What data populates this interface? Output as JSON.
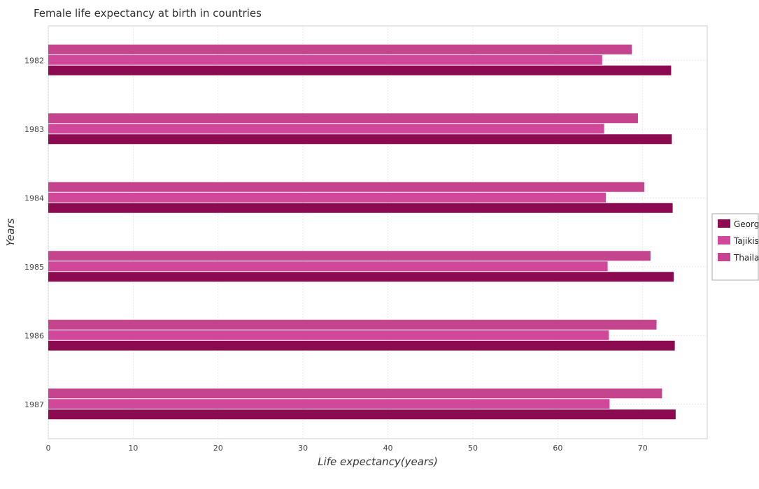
{
  "chart_data": {
    "type": "bar",
    "orientation": "horizontal",
    "title": "Female life expectancy at birth in countries",
    "xlabel": "Life expectancy(years)",
    "ylabel": "Years",
    "categories": [
      "1982",
      "1983",
      "1984",
      "1985",
      "1986",
      "1987"
    ],
    "series": [
      {
        "name": "Georgia",
        "color": "#8B0A50",
        "values": [
          73.35,
          73.43,
          73.53,
          73.65,
          73.78,
          73.88
        ]
      },
      {
        "name": "Tajikistan",
        "color": "#D1479A",
        "values": [
          65.23,
          65.46,
          65.67,
          65.87,
          66.02,
          66.1
        ]
      },
      {
        "name": "Thailand",
        "color": "#C4458E",
        "values": [
          68.72,
          69.44,
          70.19,
          70.92,
          71.63,
          72.28
        ]
      }
    ],
    "xlim": [
      0,
      77.6
    ],
    "xticks": [
      0,
      10,
      20,
      30,
      40,
      50,
      60,
      70
    ],
    "grid": true,
    "legend_position": "right"
  }
}
